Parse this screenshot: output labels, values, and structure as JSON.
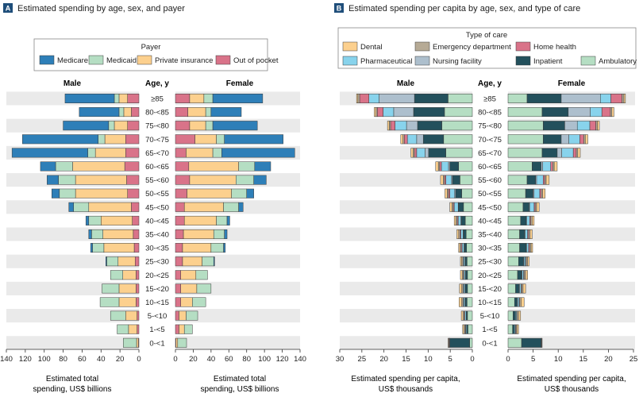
{
  "panelA": {
    "letter": "A",
    "title": "Estimated spending by age, sex, and payer",
    "legend_title": "Payer",
    "male_label": "Male",
    "female_label": "Female",
    "age_label": "Age, y",
    "xlabel_male": [
      "Estimated total",
      "spending, US$ billions"
    ],
    "xlabel_female": [
      "Estimated total",
      "spending, US$ billions"
    ]
  },
  "panelB": {
    "letter": "B",
    "title": "Estimated spending per capita by age, sex, and type of care",
    "legend_title": "Type of care",
    "male_label": "Male",
    "female_label": "Female",
    "age_label": "Age, y",
    "xlabel_male": [
      "Estimated spending per capita,",
      "US$ thousands"
    ],
    "xlabel_female": [
      "Estimated spending per capita,",
      "US$ thousands"
    ]
  },
  "chart_data": [
    {
      "type": "bar",
      "orientation": "horizontal-mirrored",
      "panel": "A",
      "categories": [
        "≥85",
        "80-<85",
        "75-<80",
        "70-<75",
        "65-<70",
        "60-<65",
        "55-<60",
        "50-<55",
        "45-<50",
        "40-<45",
        "35-<40",
        "30-<35",
        "25-<30",
        "20-<25",
        "15-<20",
        "10-<15",
        "5-<10",
        "1-<5",
        "0-<1"
      ],
      "xlim": [
        0,
        140
      ],
      "ticks": [
        0,
        20,
        40,
        60,
        80,
        100,
        120,
        140
      ],
      "legend_order": [
        "Medicare",
        "Medicaid",
        "Private insurance",
        "Out of pocket"
      ],
      "stack_order": [
        "Out of pocket",
        "Private insurance",
        "Medicaid",
        "Medicare"
      ],
      "colors": {
        "Medicare": "#2e7fb8",
        "Medicaid": "#b5dec3",
        "Private insurance": "#fcd08e",
        "Out of pocket": "#d97389"
      },
      "series": {
        "Male": [
          {
            "name": "Medicare",
            "values": [
              52,
              42,
              48,
              80,
              80,
              16,
              12,
              8,
              5,
              3,
              3,
              2,
              1,
              0,
              0,
              0,
              0,
              0,
              0
            ]
          },
          {
            "name": "Medicaid",
            "values": [
              5,
              5,
              6,
              7,
              8,
              18,
              18,
              17,
              16,
              13,
              12,
              12,
              12,
              13,
              18,
              20,
              16,
              12,
              14
            ]
          },
          {
            "name": "Private insurance",
            "values": [
              9,
              8,
              14,
              22,
              32,
              55,
              54,
              55,
              45,
              33,
              32,
              32,
              18,
              14,
              18,
              18,
              12,
              9,
              2
            ]
          },
          {
            "name": "Out of pocket",
            "values": [
              12,
              8,
              12,
              14,
              14,
              15,
              13,
              12,
              8,
              7,
              6,
              5,
              4,
              3,
              3,
              3,
              2,
              2,
              0.5
            ]
          }
        ],
        "Female": [
          {
            "name": "Medicare",
            "values": [
              56,
              34,
              50,
              66,
              82,
              18,
              14,
              8,
              5,
              3,
              3,
              2,
              1,
              0,
              0,
              0,
              0,
              0,
              0
            ]
          },
          {
            "name": "Medicaid",
            "values": [
              10,
              6,
              8,
              9,
              10,
              18,
              20,
              17,
              17,
              12,
              12,
              14,
              13,
              13,
              16,
              15,
              13,
              9,
              10
            ]
          },
          {
            "name": "Private insurance",
            "values": [
              16,
              20,
              18,
              24,
              30,
              56,
              52,
              50,
              44,
              36,
              34,
              32,
              22,
              17,
              18,
              13,
              8,
              6,
              2
            ]
          },
          {
            "name": "Out of pocket",
            "values": [
              16,
              14,
              16,
              22,
              12,
              15,
              16,
              13,
              10,
              10,
              9,
              8,
              8,
              6,
              6,
              6,
              4,
              4,
              0.5
            ]
          }
        ]
      }
    },
    {
      "type": "bar",
      "orientation": "horizontal-mirrored",
      "panel": "B",
      "categories": [
        "≥85",
        "80-<85",
        "75-<80",
        "70-<75",
        "65-<70",
        "60-<65",
        "55-<60",
        "50-<55",
        "45-<50",
        "40-<45",
        "35-<40",
        "30-<35",
        "25-<30",
        "20-<25",
        "15-<20",
        "10-<15",
        "5-<10",
        "1-<5",
        "0-<1"
      ],
      "xlim": [
        0,
        30
      ],
      "xlim_female": [
        0,
        25
      ],
      "ticks": [
        0,
        5,
        10,
        15,
        20,
        25,
        30
      ],
      "ticks_female": [
        0,
        5,
        10,
        15,
        20,
        25
      ],
      "legend_order": [
        "Dental",
        "Emergency department",
        "Home health",
        "Pharmaceutical",
        "Nursing facility",
        "Inpatient",
        "Ambulatory"
      ],
      "stack_order": [
        "Ambulatory",
        "Inpatient",
        "Nursing facility",
        "Pharmaceutical",
        "Home health",
        "Emergency department",
        "Dental"
      ],
      "colors": {
        "Dental": "#fcd08e",
        "Emergency department": "#b6aa95",
        "Home health": "#d97389",
        "Pharmaceutical": "#88d3ec",
        "Nursing facility": "#adbfcd",
        "Inpatient": "#23505c",
        "Ambulatory": "#b5dec3"
      },
      "series": {
        "Male": [
          {
            "name": "Ambulatory",
            "values": [
              5.5,
              6.3,
              6.9,
              6.5,
              6.0,
              3.1,
              2.8,
              2.4,
              2.0,
              1.6,
              1.4,
              1.3,
              1.2,
              1.1,
              1.1,
              1.2,
              1.1,
              1.0,
              0.6
            ]
          },
          {
            "name": "Inpatient",
            "values": [
              7.6,
              7.0,
              5.5,
              4.6,
              3.9,
              2.0,
              1.7,
              1.4,
              1.1,
              0.9,
              0.6,
              0.5,
              0.4,
              0.4,
              0.5,
              0.4,
              0.3,
              0.3,
              4.5
            ]
          },
          {
            "name": "Nursing facility",
            "values": [
              8.0,
              4.5,
              2.5,
              1.5,
              0.8,
              0.3,
              0.2,
              0.2,
              0.1,
              0.1,
              0.1,
              0.1,
              0.1,
              0.1,
              0.1,
              0.1,
              0.0,
              0.0,
              0.0
            ]
          },
          {
            "name": "Pharmaceutical",
            "values": [
              2.3,
              2.4,
              2.6,
              2.1,
              1.9,
              1.6,
              1.3,
              1.1,
              0.9,
              0.6,
              0.5,
              0.4,
              0.3,
              0.3,
              0.3,
              0.3,
              0.3,
              0.2,
              0.1
            ]
          },
          {
            "name": "Home health",
            "values": [
              2.1,
              1.3,
              1.0,
              0.7,
              0.5,
              0.4,
              0.3,
              0.3,
              0.2,
              0.2,
              0.2,
              0.2,
              0.1,
              0.1,
              0.1,
              0.1,
              0.1,
              0.1,
              0.1
            ]
          },
          {
            "name": "Emergency department",
            "values": [
              0.4,
              0.3,
              0.3,
              0.3,
              0.3,
              0.3,
              0.3,
              0.3,
              0.3,
              0.3,
              0.3,
              0.3,
              0.3,
              0.3,
              0.3,
              0.3,
              0.3,
              0.3,
              0.2
            ]
          },
          {
            "name": "Dental",
            "values": [
              0.3,
              0.4,
              0.4,
              0.5,
              0.5,
              0.6,
              0.6,
              0.5,
              0.5,
              0.4,
              0.4,
              0.3,
              0.3,
              0.4,
              0.5,
              0.6,
              0.4,
              0.3,
              0.0
            ]
          }
        ],
        "Female": [
          {
            "name": "Ambulatory",
            "values": [
              3.8,
              6.8,
              7.0,
              7.0,
              6.8,
              4.8,
              3.8,
              3.5,
              3.0,
              2.5,
              2.3,
              2.3,
              2.1,
              1.9,
              1.5,
              1.3,
              1.0,
              0.9,
              2.7
            ]
          },
          {
            "name": "Inpatient",
            "values": [
              6.8,
              5.2,
              4.3,
              3.6,
              3.0,
              1.8,
              1.7,
              1.5,
              1.2,
              1.1,
              1.0,
              1.3,
              1.0,
              0.8,
              0.7,
              0.5,
              0.5,
              0.4,
              3.9
            ]
          },
          {
            "name": "Nursing facility",
            "values": [
              7.8,
              4.4,
              2.5,
              1.5,
              0.9,
              0.3,
              0.2,
              0.2,
              0.1,
              0.1,
              0.1,
              0.1,
              0.1,
              0.1,
              0.1,
              0.1,
              0.0,
              0.0,
              0.0
            ]
          },
          {
            "name": "Pharmaceutical",
            "values": [
              2.1,
              2.3,
              2.5,
              2.2,
              2.3,
              1.6,
              1.3,
              1.1,
              0.9,
              0.6,
              0.5,
              0.4,
              0.3,
              0.3,
              0.3,
              0.3,
              0.2,
              0.2,
              0.0
            ]
          },
          {
            "name": "Home health",
            "values": [
              2.2,
              1.7,
              1.2,
              0.8,
              0.6,
              0.4,
              0.3,
              0.3,
              0.2,
              0.2,
              0.2,
              0.2,
              0.1,
              0.1,
              0.1,
              0.1,
              0.1,
              0.1,
              0.1
            ]
          },
          {
            "name": "Emergency department",
            "values": [
              0.4,
              0.3,
              0.3,
              0.3,
              0.3,
              0.3,
              0.3,
              0.3,
              0.3,
              0.3,
              0.3,
              0.3,
              0.3,
              0.3,
              0.3,
              0.3,
              0.3,
              0.2,
              0.1
            ]
          },
          {
            "name": "Dental",
            "values": [
              0.3,
              0.4,
              0.4,
              0.5,
              0.5,
              0.6,
              0.6,
              0.5,
              0.5,
              0.4,
              0.4,
              0.3,
              0.3,
              0.4,
              0.5,
              0.6,
              0.4,
              0.3,
              0.0
            ]
          }
        ]
      }
    }
  ]
}
